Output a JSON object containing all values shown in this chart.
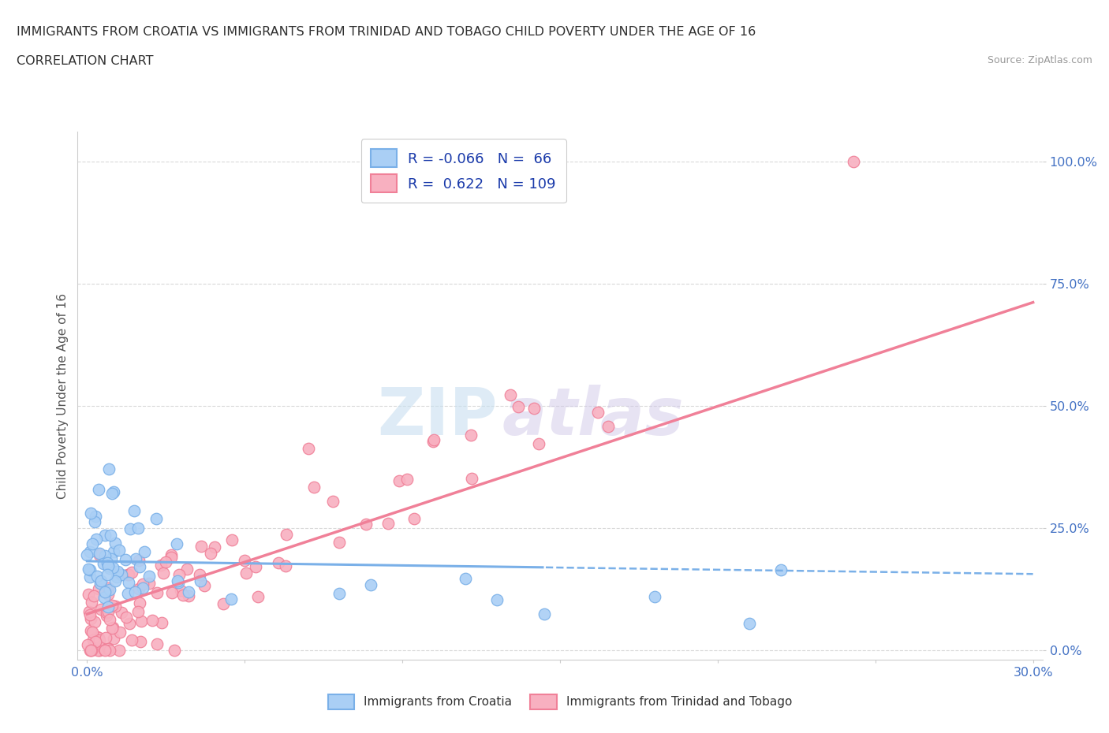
{
  "title": "IMMIGRANTS FROM CROATIA VS IMMIGRANTS FROM TRINIDAD AND TOBAGO CHILD POVERTY UNDER THE AGE OF 16",
  "subtitle": "CORRELATION CHART",
  "source": "Source: ZipAtlas.com",
  "ylabel_label": "Child Poverty Under the Age of 16",
  "croatia_color": "#7ab0e8",
  "croatia_color_fill": "#aacff5",
  "trinidad_color": "#f08098",
  "trinidad_color_fill": "#f8b0c0",
  "croatia_R": -0.066,
  "croatia_N": 66,
  "trinidad_R": 0.622,
  "trinidad_N": 109,
  "legend_label_croatia": "R = -0.066   N =  66",
  "legend_label_trinidad": "R =  0.622   N = 109",
  "legend_label_bottom_croatia": "Immigrants from Croatia",
  "legend_label_bottom_trinidad": "Immigrants from Trinidad and Tobago",
  "watermark_zip": "ZIP",
  "watermark_atlas": "atlas",
  "background_color": "#ffffff",
  "grid_color": "#d0d0d0",
  "title_color": "#303030",
  "axis_label_color": "#4472c4"
}
